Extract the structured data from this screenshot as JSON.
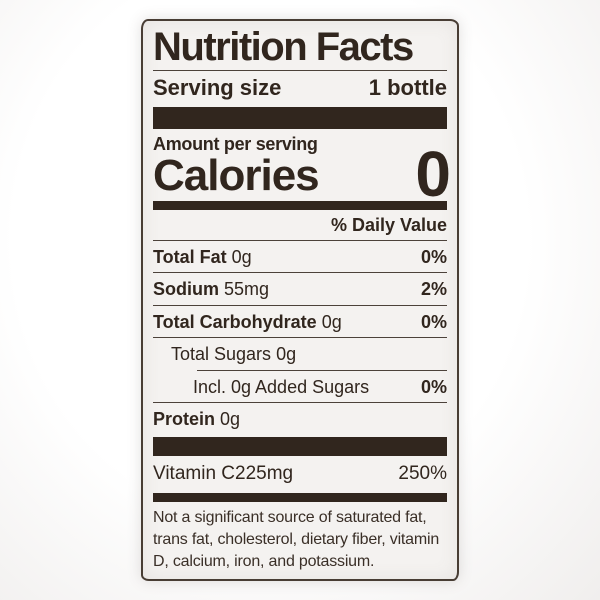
{
  "label": {
    "title": "Nutrition Facts",
    "serving": {
      "label": "Serving size",
      "value": "1 bottle"
    },
    "amount_per_serving": "Amount per serving",
    "calories": {
      "label": "Calories",
      "value": "0"
    },
    "daily_value_header": "% Daily Value",
    "rows": [
      {
        "name": "Total Fat",
        "amount": "0g",
        "dv": "0%"
      },
      {
        "name": "Sodium",
        "amount": "55mg",
        "dv": "2%"
      },
      {
        "name": "Total Carbohydrate",
        "amount": "0g",
        "dv": "0%"
      },
      {
        "name": "Total Sugars",
        "amount": "0g",
        "dv": ""
      },
      {
        "name": "Incl. 0g Added Sugars",
        "amount": "",
        "dv": "0%"
      },
      {
        "name": "Protein",
        "amount": "0g",
        "dv": ""
      }
    ],
    "vitamins": [
      {
        "name": "Vitamin C",
        "amount": "225mg",
        "dv": "250%"
      }
    ],
    "footnote": "Not a significant source of saturated fat, trans fat, cholesterol, dietary fiber, vitamin D, calcium, iron, and potassium.",
    "colors": {
      "ink": "#31261e",
      "label_bg": "#f4f2f0",
      "page_bg": "#fdfcfc"
    }
  }
}
